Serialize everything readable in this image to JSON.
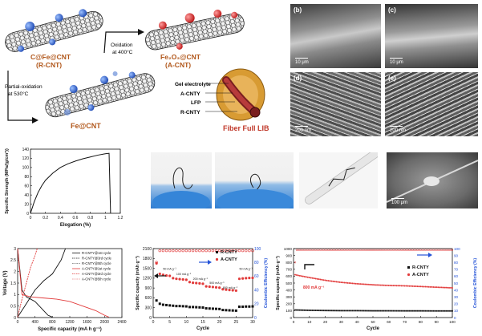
{
  "schematic": {
    "rcnt_label_line1": "C@Fe@CNT",
    "rcnt_label_line2": "(R-CNT)",
    "acnt_label_line1": "Fe₂O₃@CNT",
    "acnt_label_line2": "(A-CNT)",
    "fecnt_label": "Fe@CNT",
    "oxidation_line1": "Oxidation",
    "oxidation_line2": "at 400°C",
    "partial_line1": "Partial-oxidation",
    "partial_line2": "at 530°C",
    "fiber_labels": [
      "Gel electrolyte",
      "A-CNTY",
      "LFP",
      "R-CNTY"
    ],
    "fiber_title": "Fiber Full LIB",
    "colors": {
      "rcnt_particle": "#3b6fd8",
      "acnt_particle": "#e23b3b",
      "fiber_title": "#c0392b"
    }
  },
  "sem": {
    "panels": [
      {
        "label": "(b)",
        "scale": "10 μm"
      },
      {
        "label": "(c)",
        "scale": "10 μm"
      },
      {
        "label": "(d)",
        "scale": "200 nm"
      },
      {
        "label": "(e)",
        "scale": "200 nm"
      }
    ],
    "photo_scale": "100 μm"
  },
  "strength_chart": {
    "ylabel": "Specific Strength (MPa/(g/cm³))",
    "xlabel": "Elogation (%)"
  },
  "gcd_chart": {
    "ylabel": "Voltage (V)",
    "xlabel": "Specific capacity (mA h g⁻¹)",
    "legend": [
      "R-CNTY@1st cycle",
      "R-CNTY@3rd cycle",
      "R-CNTY@5th cycle",
      "A-CNTY@1st cycle",
      "A-CNTY@3rd cycle",
      "A-CNTY@5th cycle"
    ]
  },
  "rate_chart": {
    "ylabel": "Specific capacity (mAh g⁻¹)",
    "ylabel2": "Coulombic Efficiency (%)",
    "xlabel": "Cycle",
    "legend": [
      "R-CNTY",
      "A-CNTY"
    ],
    "annotations": [
      "50 mA g⁻¹",
      "100 mA g⁻¹",
      "200 mA g⁻¹",
      "500 mA g⁻¹",
      "800 mA g⁻¹",
      "50 mA g⁻¹"
    ]
  },
  "cycle_chart": {
    "ylabel": "Specific capacity (mAh g⁻¹)",
    "ylabel2": "Coulombic Efficiency (%)",
    "xlabel": "Cycle",
    "legend": [
      "R-CNTY",
      "A-CNTY"
    ],
    "annotation": "800 mA g⁻¹"
  },
  "chart_data": [
    {
      "type": "line",
      "xlabel": "Elogation (%)",
      "ylabel": "Specific Strength (MPa/(g/cm³))",
      "xlim": [
        0,
        1.2
      ],
      "ylim": [
        0,
        140
      ],
      "xticks": [
        0,
        0.2,
        0.4,
        0.6,
        0.8,
        1.0,
        1.2
      ],
      "yticks": [
        0,
        20,
        40,
        60,
        80,
        100,
        120,
        140
      ],
      "series": [
        {
          "x": [
            0,
            0.05,
            0.1,
            0.15,
            0.2,
            0.3,
            0.4,
            0.5,
            0.6,
            0.7,
            0.8,
            0.9,
            1.0,
            1.05,
            1.07
          ],
          "y": [
            0,
            25,
            45,
            60,
            72,
            88,
            100,
            108,
            114,
            119,
            123,
            127,
            130,
            131,
            0
          ]
        }
      ]
    },
    {
      "type": "line",
      "xlabel": "Specific capacity (mA h g⁻¹)",
      "ylabel": "Voltage (V)",
      "xlim": [
        0,
        2400
      ],
      "ylim": [
        0,
        3.0
      ],
      "xticks": [
        0,
        400,
        800,
        1200,
        1600,
        2000,
        2400
      ],
      "yticks": [
        0,
        0.5,
        1.0,
        1.5,
        2.0,
        2.5,
        3.0
      ],
      "series": [
        {
          "name": "R-CNTY@1st cycle",
          "x": [
            0,
            100,
            200,
            300,
            400,
            500,
            600,
            700,
            800
          ],
          "y": [
            3.0,
            1.2,
            0.9,
            0.8,
            0.7,
            0.5,
            0.3,
            0.1,
            0.02
          ]
        },
        {
          "name": "A-CNTY@1st cycle",
          "x": [
            0,
            100,
            300,
            600,
            900,
            1200,
            1500,
            1800,
            2000,
            2100
          ],
          "y": [
            3.0,
            1.0,
            0.9,
            0.85,
            0.8,
            0.7,
            0.5,
            0.3,
            0.1,
            0.02
          ]
        },
        {
          "name": "A-CNTY@3rd cycle",
          "x": [
            0,
            200,
            400,
            600,
            800,
            1000,
            1100
          ],
          "y": [
            0.02,
            0.6,
            1.2,
            1.6,
            1.9,
            2.5,
            3.0
          ]
        },
        {
          "name": "R-CNTY@3rd cycle",
          "x": [
            0,
            100,
            200,
            300,
            400,
            450
          ],
          "y": [
            0.02,
            0.8,
            1.5,
            2.2,
            2.7,
            3.0
          ]
        }
      ]
    },
    {
      "type": "scatter",
      "xlabel": "Cycle",
      "ylabel": "Specific capacity (mAh g⁻¹)",
      "ylabel2": "Coulombic Efficiency (%)",
      "xlim": [
        0,
        30
      ],
      "ylim": [
        0,
        2100
      ],
      "y2lim": [
        0,
        100
      ],
      "xticks": [
        0,
        5,
        10,
        15,
        20,
        25,
        30
      ],
      "yticks": [
        0,
        300,
        600,
        900,
        1200,
        1500,
        1800,
        2100
      ],
      "series": [
        {
          "name": "R-CNTY",
          "x": [
            1,
            2,
            3,
            4,
            5,
            6,
            7,
            8,
            9,
            10,
            11,
            12,
            13,
            14,
            15,
            16,
            17,
            18,
            19,
            20,
            21,
            22,
            23,
            24,
            25,
            26,
            27,
            28,
            29,
            30
          ],
          "y": [
            520,
            420,
            390,
            380,
            370,
            360,
            350,
            350,
            345,
            340,
            320,
            320,
            315,
            310,
            305,
            280,
            275,
            270,
            265,
            260,
            230,
            225,
            220,
            215,
            210,
            330,
            330,
            335,
            335,
            340
          ]
        },
        {
          "name": "A-CNTY",
          "x": [
            1,
            2,
            3,
            4,
            5,
            6,
            7,
            8,
            9,
            10,
            11,
            12,
            13,
            14,
            15,
            16,
            17,
            18,
            19,
            20,
            21,
            22,
            23,
            24,
            25,
            26,
            27,
            28,
            29,
            30
          ],
          "y": [
            1650,
            1330,
            1300,
            1280,
            1270,
            1200,
            1180,
            1170,
            1160,
            1150,
            1080,
            1060,
            1050,
            1040,
            1030,
            950,
            940,
            930,
            920,
            910,
            860,
            850,
            840,
            830,
            820,
            1180,
            1190,
            1200,
            1205,
            1210
          ]
        }
      ]
    },
    {
      "type": "scatter",
      "xlabel": "Cycle",
      "ylabel": "Specific capacity (mAh g⁻¹)",
      "ylabel2": "Coulombic Efficiency (%)",
      "xlim": [
        0,
        100
      ],
      "ylim": [
        0,
        1000
      ],
      "y2lim": [
        0,
        100
      ],
      "xticks": [
        0,
        10,
        20,
        30,
        40,
        50,
        60,
        70,
        80,
        90,
        100
      ],
      "yticks": [
        0,
        100,
        200,
        300,
        400,
        500,
        600,
        700,
        800,
        900,
        1000
      ],
      "series": [
        {
          "name": "R-CNTY",
          "x": [
            1,
            10,
            20,
            30,
            40,
            50,
            60,
            70,
            80,
            90,
            100
          ],
          "y": [
            110,
            105,
            102,
            100,
            100,
            98,
            98,
            97,
            97,
            96,
            96
          ]
        },
        {
          "name": "A-CNTY",
          "x": [
            1,
            10,
            20,
            30,
            40,
            50,
            60,
            70,
            80,
            90,
            100
          ],
          "y": [
            620,
            580,
            540,
            510,
            490,
            475,
            465,
            460,
            450,
            440,
            430
          ]
        }
      ]
    }
  ]
}
